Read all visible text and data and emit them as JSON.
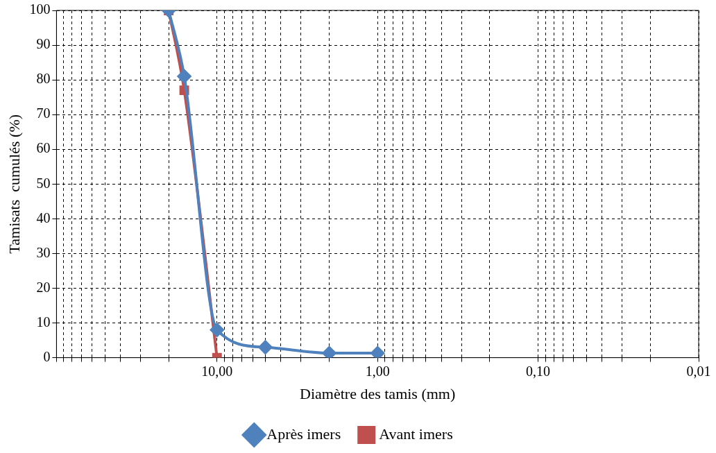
{
  "chart_data": {
    "type": "line",
    "xlabel": "Diamètre des tamis (mm)",
    "ylabel": "Tamisats  cumulés (%)",
    "log": "x",
    "xlim": [
      100,
      0.01
    ],
    "ylim": [
      0,
      100
    ],
    "xticks": [
      {
        "value": 100,
        "label": null
      },
      {
        "value": 90,
        "label": null
      },
      {
        "value": 80,
        "label": null
      },
      {
        "value": 70,
        "label": null
      },
      {
        "value": 60,
        "label": null
      },
      {
        "value": 50,
        "label": null
      },
      {
        "value": 40,
        "label": null
      },
      {
        "value": 30,
        "label": null
      },
      {
        "value": 20,
        "label": null
      },
      {
        "value": 10,
        "label": "10,00"
      },
      {
        "value": 9,
        "label": null
      },
      {
        "value": 8,
        "label": null
      },
      {
        "value": 7,
        "label": null
      },
      {
        "value": 6,
        "label": null
      },
      {
        "value": 5,
        "label": null
      },
      {
        "value": 4,
        "label": null
      },
      {
        "value": 3,
        "label": null
      },
      {
        "value": 2,
        "label": null
      },
      {
        "value": 1,
        "label": "1,00"
      },
      {
        "value": 0.9,
        "label": null
      },
      {
        "value": 0.8,
        "label": null
      },
      {
        "value": 0.7,
        "label": null
      },
      {
        "value": 0.6,
        "label": null
      },
      {
        "value": 0.5,
        "label": null
      },
      {
        "value": 0.4,
        "label": null
      },
      {
        "value": 0.3,
        "label": null
      },
      {
        "value": 0.2,
        "label": null
      },
      {
        "value": 0.1,
        "label": "0,10"
      },
      {
        "value": 0.09,
        "label": null
      },
      {
        "value": 0.08,
        "label": null
      },
      {
        "value": 0.07,
        "label": null
      },
      {
        "value": 0.06,
        "label": null
      },
      {
        "value": 0.05,
        "label": null
      },
      {
        "value": 0.04,
        "label": null
      },
      {
        "value": 0.03,
        "label": null
      },
      {
        "value": 0.02,
        "label": null
      },
      {
        "value": 0.01,
        "label": "0,01"
      }
    ],
    "yticks": [
      0,
      10,
      20,
      30,
      40,
      50,
      60,
      70,
      80,
      90,
      100
    ],
    "grid": true,
    "legend": "bottom",
    "line_style": "solid",
    "series": [
      {
        "name": "Avant imers",
        "color": "#c0504d",
        "marker": "square",
        "x": [
          20,
          16,
          10
        ],
        "values": [
          100,
          77,
          0
        ]
      },
      {
        "name": "Après imers",
        "color": "#4f81bd",
        "marker": "diamond",
        "x": [
          20,
          16,
          10,
          5,
          2,
          1
        ],
        "values": [
          100,
          81,
          8,
          3,
          1.3,
          1.3
        ]
      }
    ]
  }
}
